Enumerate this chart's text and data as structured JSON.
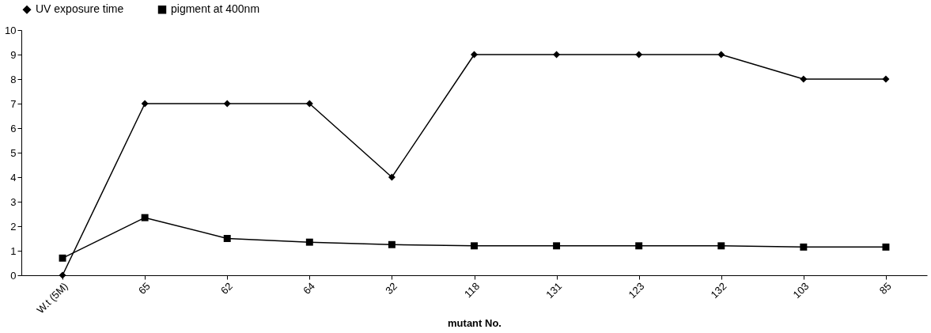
{
  "chart_data": {
    "type": "line",
    "xlabel": "mutant No.",
    "categories": [
      "W.t (5M)",
      "65",
      "62",
      "64",
      "32",
      "118",
      "131",
      "123",
      "132",
      "103",
      "85"
    ],
    "series": [
      {
        "name": "UV exposure time",
        "color": "#000000",
        "marker": "diamond",
        "values": [
          0,
          7,
          7,
          7,
          4,
          9,
          9,
          9,
          9,
          8,
          8
        ]
      },
      {
        "name": "pigment at 400nm",
        "color": "#000000",
        "marker": "square",
        "values": [
          0.7,
          2.35,
          1.5,
          1.35,
          1.25,
          1.2,
          1.2,
          1.2,
          1.2,
          1.15,
          1.15
        ]
      }
    ],
    "ylim": [
      0,
      10
    ],
    "yticks": [
      0,
      1,
      2,
      3,
      4,
      5,
      6,
      7,
      8,
      9,
      10
    ],
    "grid": false,
    "legend": "top",
    "line_style": "solid"
  }
}
